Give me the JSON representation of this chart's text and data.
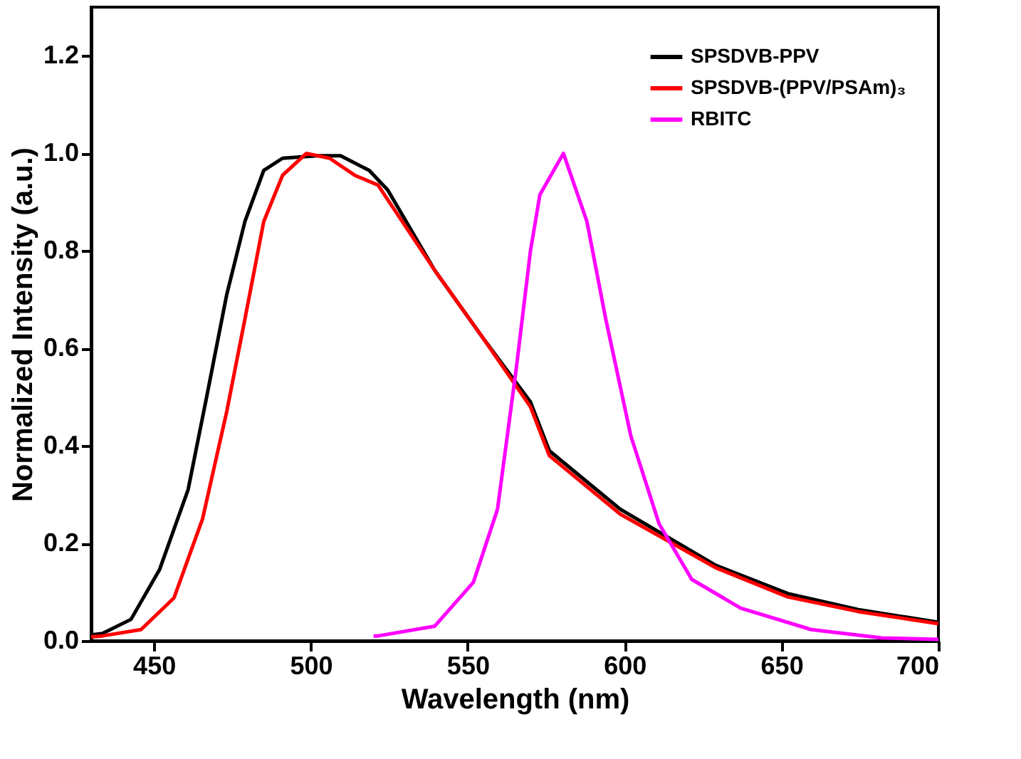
{
  "chart_data": {
    "type": "line",
    "xlabel": "Wavelength (nm)",
    "ylabel": "Normalized Intensity (a.u.)",
    "xlim": [
      430,
      700
    ],
    "xticks": [
      450,
      500,
      550,
      600,
      650,
      700
    ],
    "ylim": [
      0,
      1.3
    ],
    "yticks": [
      {
        "value": 0,
        "label": "0.0"
      },
      {
        "value": 0.2,
        "label": "0.2"
      },
      {
        "value": 0.4,
        "label": "0.4"
      },
      {
        "value": 0.6,
        "label": "0.6"
      },
      {
        "value": 0.8,
        "label": "0.8"
      },
      {
        "value": 1.0,
        "label": "1.0"
      },
      {
        "value": 1.2,
        "label": "1.2"
      }
    ],
    "grid": false,
    "legend": "top right",
    "marker": "none",
    "line_style": "solid",
    "series": [
      {
        "name": "SPSDVB-PPV",
        "color": "#000000",
        "x": [
          430,
          433.6,
          442.7,
          451.8,
          460.9,
          466.8,
          473.2,
          479,
          485,
          491,
          502,
          509.5,
          518.6,
          524.5,
          539.5,
          555,
          570,
          576,
          598.6,
          629,
          652,
          674.5,
          700
        ],
        "values": [
          0.012,
          0.015,
          0.044,
          0.146,
          0.31,
          0.5,
          0.71,
          0.86,
          0.965,
          0.99,
          0.995,
          0.995,
          0.965,
          0.925,
          0.76,
          0.62,
          0.49,
          0.39,
          0.27,
          0.155,
          0.097,
          0.064,
          0.038
        ]
      },
      {
        "name": "SPSDVB-(PPV/PSAm)₃",
        "color": "#ff0000",
        "x": [
          430,
          433.6,
          445.9,
          456.4,
          465.5,
          473.2,
          479,
          485,
          491,
          498.6,
          506,
          514,
          521.4,
          539.5,
          555,
          570,
          576,
          598.6,
          629,
          652,
          674.5,
          700
        ],
        "values": [
          0.008,
          0.01,
          0.023,
          0.088,
          0.25,
          0.47,
          0.66,
          0.86,
          0.955,
          1.0,
          0.99,
          0.955,
          0.935,
          0.76,
          0.62,
          0.48,
          0.38,
          0.26,
          0.15,
          0.09,
          0.06,
          0.035
        ]
      },
      {
        "name": "RBITC",
        "color": "#ff00ff",
        "x": [
          520,
          521.4,
          539.5,
          551.8,
          559.5,
          565.5,
          570,
          573,
          580.5,
          588,
          594,
          602,
          611,
          621.4,
          637,
          659.5,
          682,
          700
        ],
        "values": [
          0.01,
          0.01,
          0.03,
          0.12,
          0.27,
          0.56,
          0.8,
          0.915,
          1.0,
          0.86,
          0.66,
          0.42,
          0.24,
          0.126,
          0.067,
          0.023,
          0.006,
          0.003
        ]
      }
    ]
  }
}
